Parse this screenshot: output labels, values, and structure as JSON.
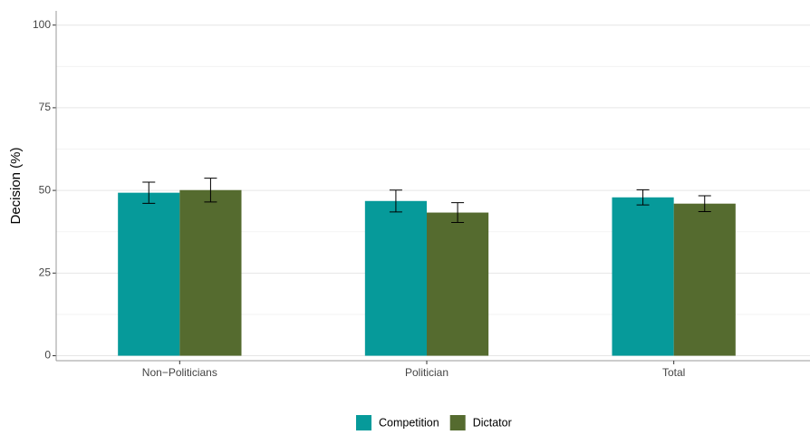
{
  "chart_data": {
    "type": "bar",
    "y_label": "Decision (%)",
    "categories": [
      "Non−Politicians",
      "Politician",
      "Total"
    ],
    "series": [
      {
        "name": "Competition",
        "color": "#069a9a",
        "values": [
          49.3,
          46.8,
          47.9
        ],
        "errors": [
          3.2,
          3.3,
          2.3
        ]
      },
      {
        "name": "Dictator",
        "color": "#556b2f",
        "values": [
          50.1,
          43.3,
          46.0
        ],
        "errors": [
          3.6,
          3.0,
          2.4
        ]
      }
    ],
    "ylim": [
      -1.5,
      104.3
    ],
    "yticks": [
      0,
      25,
      50,
      75,
      100
    ],
    "grid": true,
    "legend": "bottom"
  }
}
